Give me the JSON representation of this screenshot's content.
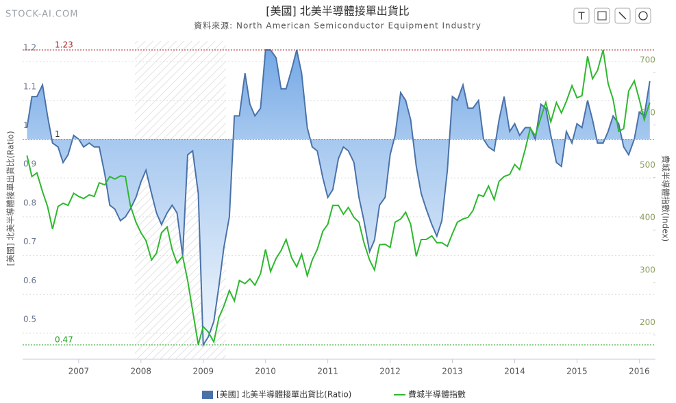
{
  "chart_data": {
    "type": "line",
    "watermark": "STOCK-AI.COM",
    "title": "[美國] 北美半導體接單出貨比",
    "subtitle": "資料來源: North American Semiconductor Equipment Industry",
    "y_label": "[美國] 北美半導體接單出貨比(Ratio)",
    "y2_label": "費城半導體指數(Index)",
    "xlim": [
      2006.1,
      2016.26
    ],
    "xticks": [
      2007,
      2008,
      2009,
      2010,
      2011,
      2012,
      2013,
      2014,
      2015,
      2016
    ],
    "ylim": [
      0.433,
      1.253
    ],
    "yticks": [
      0.5,
      0.6,
      0.7,
      0.8,
      0.9,
      1,
      1.1,
      1.2
    ],
    "y2lim": [
      154,
      760
    ],
    "y2ticks": [
      200,
      300,
      400,
      500,
      600,
      700
    ],
    "grid": true,
    "reference_lines": [
      {
        "value": 1.23,
        "color": "#b22222"
      },
      {
        "value": 1,
        "color": "#888888"
      },
      {
        "value": 0.47,
        "color": "#22a022"
      }
    ],
    "x": [
      2006.17,
      2006.25,
      2006.33,
      2006.42,
      2006.5,
      2006.58,
      2006.67,
      2006.75,
      2006.83,
      2006.92,
      2007.0,
      2007.08,
      2007.17,
      2007.25,
      2007.33,
      2007.42,
      2007.5,
      2007.58,
      2007.67,
      2007.75,
      2007.83,
      2007.92,
      2008.0,
      2008.08,
      2008.17,
      2008.25,
      2008.33,
      2008.42,
      2008.5,
      2008.58,
      2008.67,
      2008.75,
      2008.83,
      2008.92,
      2009.0,
      2009.08,
      2009.17,
      2009.25,
      2009.33,
      2009.42,
      2009.5,
      2009.58,
      2009.67,
      2009.75,
      2009.83,
      2009.92,
      2010.0,
      2010.08,
      2010.17,
      2010.25,
      2010.33,
      2010.42,
      2010.5,
      2010.58,
      2010.67,
      2010.75,
      2010.83,
      2010.92,
      2011.0,
      2011.08,
      2011.17,
      2011.25,
      2011.33,
      2011.42,
      2011.5,
      2011.58,
      2011.67,
      2011.75,
      2011.83,
      2011.92,
      2012.0,
      2012.08,
      2012.17,
      2012.25,
      2012.33,
      2012.42,
      2012.5,
      2012.58,
      2012.67,
      2012.75,
      2012.83,
      2012.92,
      2013.0,
      2013.08,
      2013.17,
      2013.25,
      2013.33,
      2013.42,
      2013.5,
      2013.58,
      2013.67,
      2013.75,
      2013.83,
      2013.92,
      2014.0,
      2014.08,
      2014.17,
      2014.25,
      2014.33,
      2014.42,
      2014.5,
      2014.58,
      2014.67,
      2014.75,
      2014.83,
      2014.92,
      2015.0,
      2015.08,
      2015.17,
      2015.25,
      2015.33,
      2015.42,
      2015.5,
      2015.58,
      2015.67,
      2015.75,
      2015.83,
      2015.92,
      2016.0,
      2016.08,
      2016.17
    ],
    "series": [
      {
        "name": "[美國] 北美半導體接單出貨比(Ratio)",
        "color": "#4a72a8",
        "fill": true,
        "values": [
          1.03,
          1.11,
          1.11,
          1.14,
          1.06,
          0.99,
          0.98,
          0.94,
          0.96,
          1.01,
          1.0,
          0.98,
          0.99,
          0.98,
          0.98,
          0.91,
          0.83,
          0.82,
          0.79,
          0.8,
          0.82,
          0.85,
          0.89,
          0.92,
          0.86,
          0.81,
          0.78,
          0.81,
          0.83,
          0.81,
          0.7,
          0.96,
          0.97,
          0.86,
          0.47,
          0.49,
          0.53,
          0.62,
          0.72,
          0.8,
          1.06,
          1.06,
          1.17,
          1.09,
          1.06,
          1.08,
          1.23,
          1.23,
          1.21,
          1.13,
          1.13,
          1.18,
          1.23,
          1.17,
          1.03,
          0.98,
          0.97,
          0.9,
          0.85,
          0.87,
          0.95,
          0.98,
          0.97,
          0.94,
          0.85,
          0.79,
          0.71,
          0.74,
          0.83,
          0.85,
          0.96,
          1.01,
          1.12,
          1.1,
          1.05,
          0.93,
          0.86,
          0.82,
          0.78,
          0.75,
          0.79,
          0.92,
          1.11,
          1.1,
          1.14,
          1.08,
          1.08,
          1.1,
          1.0,
          0.98,
          0.97,
          1.05,
          1.11,
          1.02,
          1.04,
          1.01,
          1.03,
          1.03,
          1.0,
          1.09,
          1.08,
          1.01,
          0.94,
          0.93,
          1.02,
          0.99,
          1.04,
          1.03,
          1.1,
          1.05,
          0.99,
          0.99,
          1.02,
          1.06,
          1.04,
          0.98,
          0.96,
          1.0,
          1.07,
          1.06,
          1.15
        ]
      },
      {
        "name": "費城半導體指數",
        "color": "#2db82d",
        "axis": "y2",
        "values": [
          542,
          502,
          509,
          473,
          445,
          402,
          445,
          451,
          447,
          470,
          464,
          460,
          467,
          464,
          490,
          486,
          502,
          497,
          503,
          502,
          447,
          415,
          395,
          380,
          343,
          356,
          395,
          406,
          363,
          337,
          350,
          304,
          246,
          182,
          216,
          206,
          187,
          233,
          255,
          285,
          265,
          304,
          298,
          307,
          295,
          317,
          363,
          321,
          346,
          361,
          382,
          347,
          330,
          354,
          313,
          343,
          363,
          398,
          411,
          447,
          447,
          430,
          443,
          424,
          415,
          376,
          343,
          324,
          372,
          373,
          367,
          415,
          421,
          434,
          411,
          350,
          382,
          382,
          389,
          376,
          376,
          369,
          393,
          415,
          421,
          424,
          437,
          467,
          464,
          484,
          458,
          493,
          502,
          506,
          525,
          515,
          554,
          594,
          580,
          614,
          643,
          606,
          643,
          623,
          645,
          675,
          652,
          656,
          731,
          688,
          704,
          743,
          679,
          649,
          588,
          593,
          665,
          684,
          649,
          610,
          643
        ]
      }
    ]
  },
  "toolbar": {
    "text_tool": "T"
  }
}
